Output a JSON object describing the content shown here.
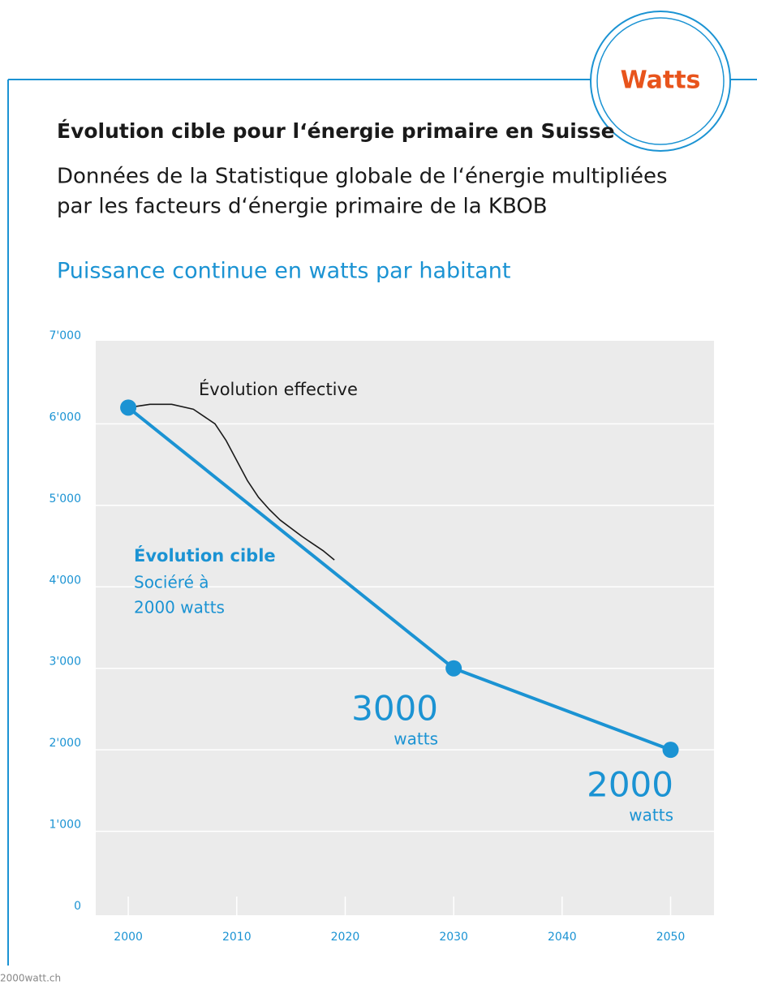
{
  "badge": "Watts",
  "source": "2000watt.ch",
  "chart_data": {
    "type": "line",
    "title": "Évolution cible pour l‘énergie primaire en Suisse",
    "subtitle": [
      "Données de la Statistique globale de l‘énergie multipliées",
      "par les facteurs d‘énergie primaire de la KBOB"
    ],
    "y_label": "Puissance continue en watts par habitant",
    "xlim": [
      1997,
      2054
    ],
    "xticks": [
      2000,
      2010,
      2020,
      2030,
      2040,
      2050
    ],
    "ylim": [
      0,
      7000
    ],
    "yticks": [
      0,
      {
        "value": 1000,
        "label": "1'000"
      },
      {
        "value": 2000,
        "label": "2'000"
      },
      {
        "value": 3000,
        "label": "3'000"
      },
      {
        "value": 4000,
        "label": "4'000"
      },
      {
        "value": 5000,
        "label": "5'000"
      },
      {
        "value": 6000,
        "label": "6'000"
      },
      {
        "value": 7000,
        "label": "7'000"
      }
    ],
    "grid": true,
    "series": [
      {
        "name": "Évolution effective",
        "color": "#1a1a1a",
        "markers": false,
        "x": [
          2000,
          2002,
          2004,
          2006,
          2008,
          2009,
          2010,
          2011,
          2012,
          2013,
          2014,
          2016,
          2018,
          2019
        ],
        "values": [
          6200,
          6240,
          6240,
          6180,
          6000,
          5800,
          5550,
          5300,
          5100,
          4950,
          4820,
          4620,
          4440,
          4330
        ]
      },
      {
        "name": "Évolution cible",
        "color": "#1b93d3",
        "markers": true,
        "x": [
          2000,
          2030,
          2050
        ],
        "values": [
          6200,
          3000,
          2000
        ],
        "value_labels": [
          null,
          "3000",
          "2000"
        ]
      }
    ],
    "annotations": [
      "Sociéré à",
      "2000 watts",
      "watts",
      "watts"
    ]
  }
}
